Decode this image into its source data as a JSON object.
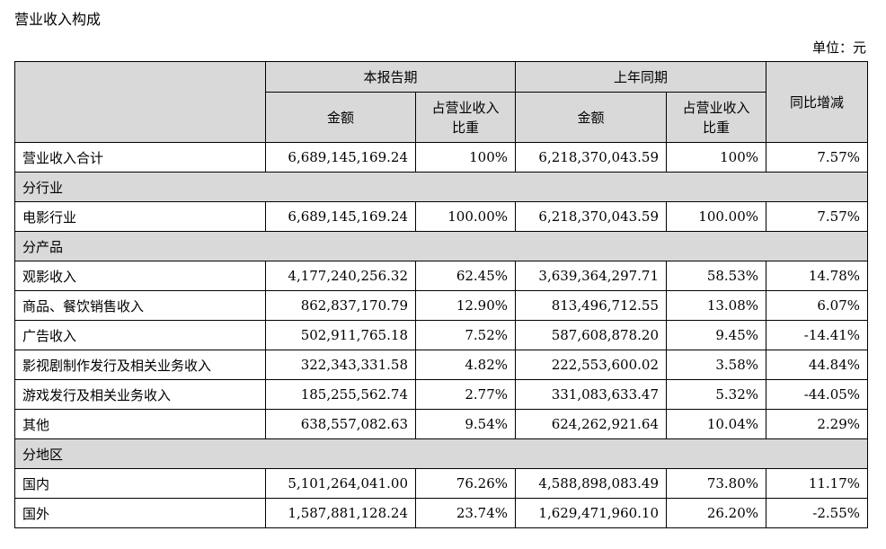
{
  "title": "营业收入构成",
  "unit": "单位：元",
  "header": {
    "current_period": "本报告期",
    "prior_period": "上年同期",
    "amount": "金额",
    "share_line1": "占营业收入",
    "share_line2": "比重",
    "yoy": "同比增减"
  },
  "total": {
    "label": "营业收入合计",
    "cur_amount": "6,689,145,169.24",
    "cur_share": "100%",
    "prev_amount": "6,218,370,043.59",
    "prev_share": "100%",
    "yoy": "7.57%"
  },
  "sections": [
    {
      "title": "分行业",
      "rows": [
        {
          "label": "电影行业",
          "cur_amount": "6,689,145,169.24",
          "cur_share": "100.00%",
          "prev_amount": "6,218,370,043.59",
          "prev_share": "100.00%",
          "yoy": "7.57%"
        }
      ]
    },
    {
      "title": "分产品",
      "rows": [
        {
          "label": "观影收入",
          "cur_amount": "4,177,240,256.32",
          "cur_share": "62.45%",
          "prev_amount": "3,639,364,297.71",
          "prev_share": "58.53%",
          "yoy": "14.78%"
        },
        {
          "label": "商品、餐饮销售收入",
          "cur_amount": "862,837,170.79",
          "cur_share": "12.90%",
          "prev_amount": "813,496,712.55",
          "prev_share": "13.08%",
          "yoy": "6.07%"
        },
        {
          "label": "广告收入",
          "cur_amount": "502,911,765.18",
          "cur_share": "7.52%",
          "prev_amount": "587,608,878.20",
          "prev_share": "9.45%",
          "yoy": "-14.41%"
        },
        {
          "label": "影视剧制作发行及相关业务收入",
          "cur_amount": "322,343,331.58",
          "cur_share": "4.82%",
          "prev_amount": "222,553,600.02",
          "prev_share": "3.58%",
          "yoy": "44.84%"
        },
        {
          "label": "游戏发行及相关业务收入",
          "cur_amount": "185,255,562.74",
          "cur_share": "2.77%",
          "prev_amount": "331,083,633.47",
          "prev_share": "5.32%",
          "yoy": "-44.05%"
        },
        {
          "label": "其他",
          "cur_amount": "638,557,082.63",
          "cur_share": "9.54%",
          "prev_amount": "624,262,921.64",
          "prev_share": "10.04%",
          "yoy": "2.29%"
        }
      ]
    },
    {
      "title": "分地区",
      "rows": [
        {
          "label": "国内",
          "cur_amount": "5,101,264,041.00",
          "cur_share": "76.26%",
          "prev_amount": "4,588,898,083.49",
          "prev_share": "73.80%",
          "yoy": "11.17%"
        },
        {
          "label": "国外",
          "cur_amount": "1,587,881,128.24",
          "cur_share": "23.74%",
          "prev_amount": "1,629,471,960.10",
          "prev_share": "26.20%",
          "yoy": "-2.55%"
        }
      ]
    }
  ]
}
